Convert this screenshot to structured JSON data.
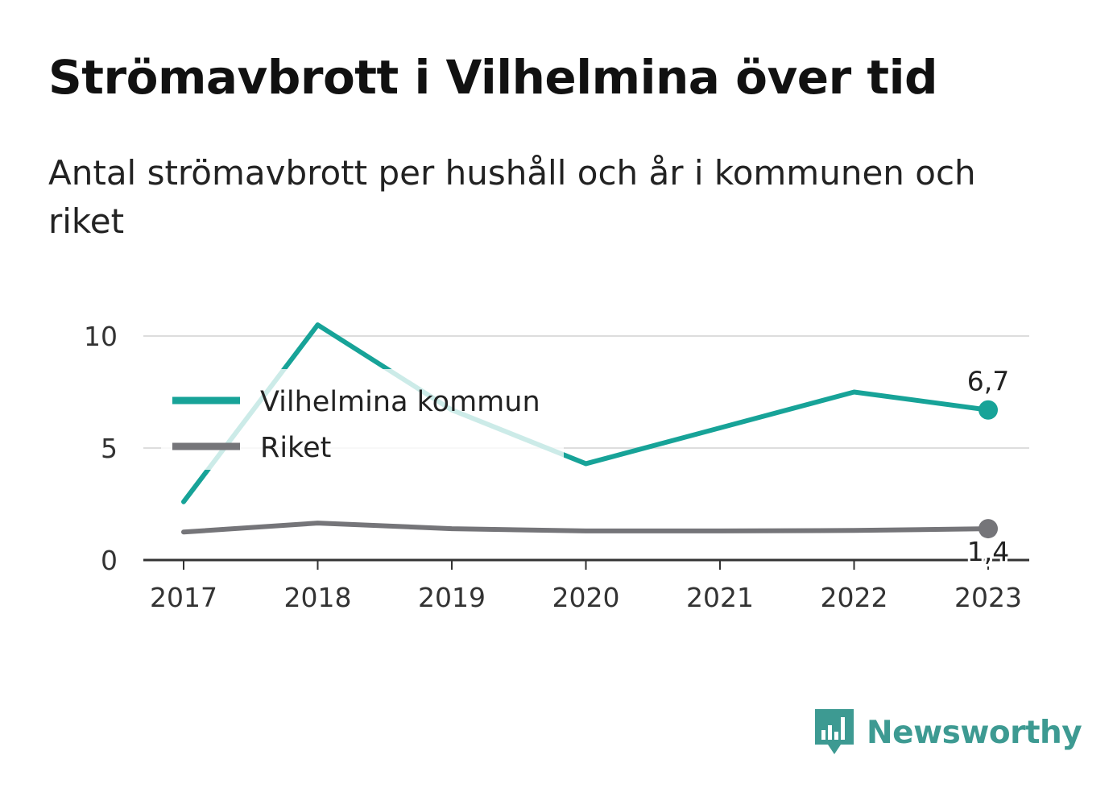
{
  "header": {
    "title": "Strömavbrott i Vilhelmina över tid",
    "subtitle": "Antal strömavbrott per hushåll och år i kommunen och riket"
  },
  "brand": {
    "name": "Newsworthy",
    "icon": "newsworthy-logo-icon",
    "color": "#3d9a92"
  },
  "chart_data": {
    "type": "line",
    "title": "Strömavbrott i Vilhelmina över tid",
    "subtitle": "Antal strömavbrott per hushåll och år i kommunen och riket",
    "x": [
      "2017",
      "2018",
      "2019",
      "2020",
      "2021",
      "2022",
      "2023"
    ],
    "ylim": [
      0,
      10
    ],
    "yticks": [
      0,
      5,
      10
    ],
    "grid": true,
    "legend_position": "top-left",
    "series": [
      {
        "name": "Vilhelmina kommun",
        "color": "#17a398",
        "values": [
          2.6,
          10.5,
          6.7,
          4.3,
          5.9,
          7.5,
          6.7
        ],
        "end_label": "6,7"
      },
      {
        "name": "Riket",
        "color": "#757579",
        "values": [
          1.25,
          1.65,
          1.4,
          1.3,
          1.3,
          1.32,
          1.4
        ],
        "end_label": "1,4"
      }
    ]
  }
}
